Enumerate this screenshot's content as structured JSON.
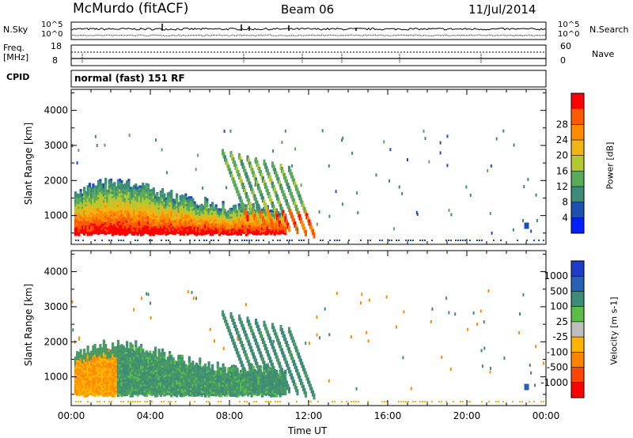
{
  "header": {
    "site": "McMurdo (fitACF)",
    "beam": "Beam 06",
    "date": "11/Jul/2014"
  },
  "strips": {
    "nsky_label": "N.Sky",
    "nsky_ticks": [
      "10^5",
      "10^0"
    ],
    "nsearch_label": "N.Search",
    "nsearch_ticks": [
      "10^5",
      "10^0"
    ],
    "freq_label_1": "Freq.",
    "freq_label_2": "[MHz]",
    "freq_ticks": [
      "18",
      "8"
    ],
    "nave_label": "Nave",
    "nave_ticks": [
      "60",
      "0"
    ],
    "cpid_label": "CPID",
    "cpid_text": "normal (fast) 151 RF"
  },
  "chart_data": [
    {
      "type": "heatmap",
      "title": "",
      "xlabel": "Time UT",
      "ylabel": "Slant Range [km]",
      "x_ticks": [
        "00:00",
        "04:00",
        "08:00",
        "12:00",
        "16:00",
        "20:00",
        "00:00"
      ],
      "x_range_hours": [
        0,
        24
      ],
      "y_ticks": [
        "1000",
        "2000",
        "3000",
        "4000"
      ],
      "ylim": [
        180,
        4600
      ],
      "colorbar": {
        "label": "Power [dB]",
        "ticks": [
          "4",
          "8",
          "12",
          "16",
          "20",
          "24",
          "28"
        ],
        "range": [
          0,
          32
        ],
        "colors": [
          "#0020ff",
          "#1e50b4",
          "#3c8c78",
          "#5aaa5a",
          "#b4c832",
          "#f0b414",
          "#ff8c00",
          "#ff5a00",
          "#ff0000"
        ]
      }
    },
    {
      "type": "heatmap",
      "title": "",
      "xlabel": "Time UT",
      "ylabel": "Slant Range [km]",
      "x_ticks": [
        "00:00",
        "04:00",
        "08:00",
        "12:00",
        "16:00",
        "20:00",
        "00:00"
      ],
      "x_range_hours": [
        0,
        24
      ],
      "y_ticks": [
        "1000",
        "2000",
        "3000",
        "4000"
      ],
      "ylim": [
        180,
        4600
      ],
      "colorbar": {
        "label": "Velocity [m s-1]",
        "ticks": [
          "1000",
          "500",
          "100",
          "25",
          "-25",
          "-100",
          "-500",
          "-1000"
        ],
        "colors": [
          "#1e3cc8",
          "#2860b4",
          "#3c8c78",
          "#5abe46",
          "#bebebe",
          "#ffb400",
          "#ff8200",
          "#ff4600",
          "#ff0000"
        ]
      }
    }
  ]
}
